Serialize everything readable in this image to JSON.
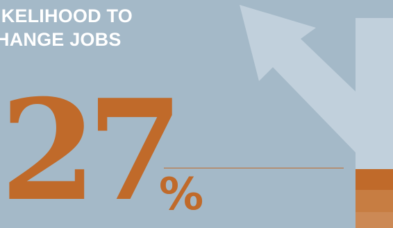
{
  "headline": {
    "line1": "IKELIHOOD TO",
    "line2": "HANGE JOBS"
  },
  "stat": {
    "value": "27",
    "unit": "%"
  },
  "colors": {
    "background": "#a4b9c8",
    "accent": "#c06a2a",
    "arrow": "#c1d0dc",
    "bar_1": "#c06a2a",
    "bar_2": "#c77d42",
    "bar_3": "#cc8955"
  },
  "icon": "arrow-up-left-icon"
}
